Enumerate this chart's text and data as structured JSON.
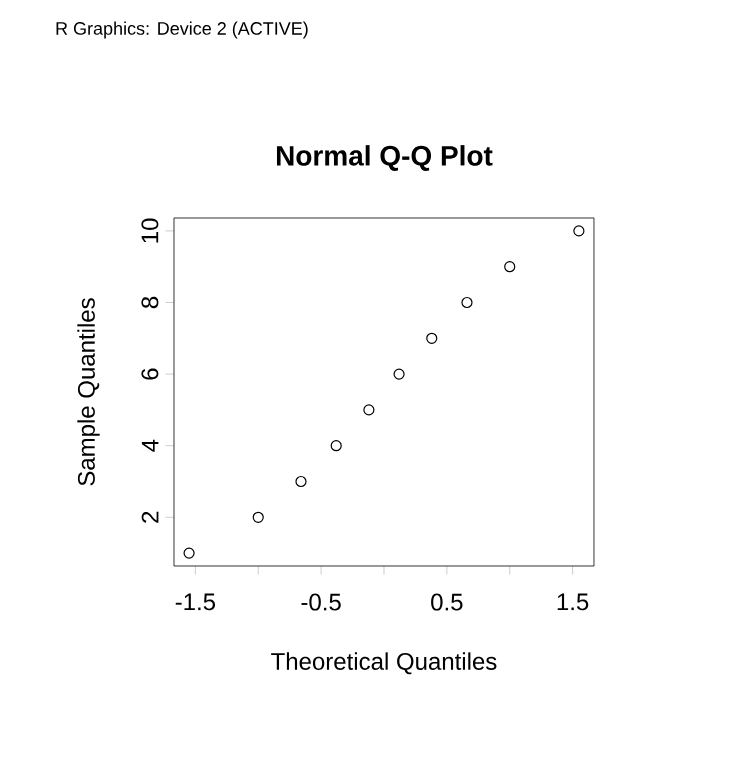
{
  "chart_data": {
    "type": "scatter",
    "title": "Normal Q-Q Plot",
    "xlabel": "Theoretical Quantiles",
    "ylabel": "Sample Quantiles",
    "annotations": [
      "R Graphics: Device 2 (ACTIVE)"
    ],
    "x": [
      -1.55,
      -1.0,
      -0.66,
      -0.38,
      -0.12,
      0.12,
      0.38,
      0.66,
      1.0,
      1.55
    ],
    "values": [
      1,
      2,
      3,
      4,
      5,
      6,
      7,
      8,
      9,
      10
    ],
    "color": "#000000",
    "marker": "circle",
    "xlim": [
      -1.67,
      1.67
    ],
    "ylim": [
      0.64,
      10.36
    ],
    "xticks": [
      -1.5,
      {
        "value": -1.0,
        "label": null
      },
      -0.5,
      {
        "value": 0.0,
        "label": null
      },
      0.5,
      {
        "value": 1.0,
        "label": null
      },
      1.5
    ],
    "yticks": [
      2,
      4,
      6,
      8,
      10
    ],
    "grid": false
  }
}
